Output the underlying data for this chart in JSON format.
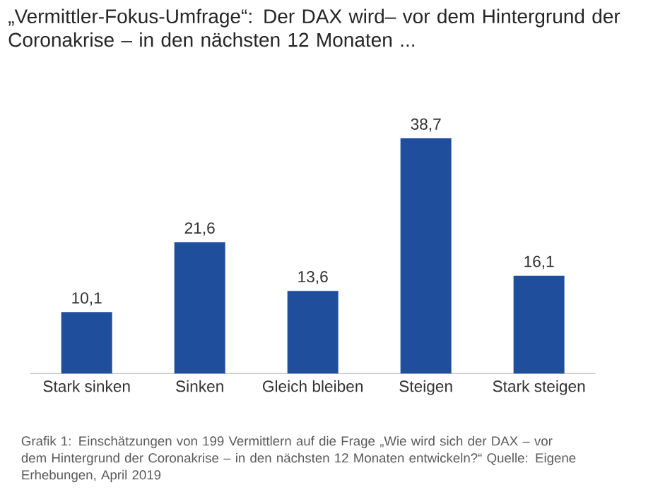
{
  "chart_data": {
    "type": "bar",
    "title": "„Vermittler-Fokus-Umfrage“: Der DAX wird– vor dem Hintergrund der Coronakrise – in den nächsten 12 Monaten ...",
    "categories": [
      "Stark sinken",
      "Sinken",
      "Gleich bleiben",
      "Steigen",
      "Stark steigen"
    ],
    "values": [
      10.1,
      21.6,
      13.6,
      38.7,
      16.1
    ],
    "value_labels": [
      "10,1",
      "21,6",
      "13,6",
      "38,7",
      "16,1"
    ],
    "color": "#1f4e9c",
    "annotations": [
      "Grafik 1: Einschätzungen von 199 Vermittlern auf die Frage „Wie wird sich der DAX – vor dem Hintergrund der Coronakrise – in den nächsten 12 Monaten entwickeln?“ Quelle: Eigene Erhebungen, April 2019"
    ]
  }
}
